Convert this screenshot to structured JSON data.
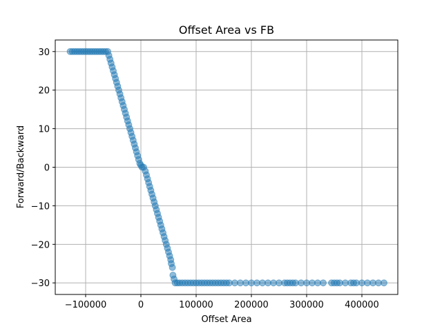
{
  "chart_data": {
    "type": "scatter",
    "title": "Offset Area vs FB",
    "xlabel": "Offset Area",
    "ylabel": "Forward/Backward",
    "xlim": [
      -155000,
      465000
    ],
    "ylim": [
      -33,
      33
    ],
    "xticks": [
      -100000,
      0,
      100000,
      200000,
      300000,
      400000
    ],
    "xtick_labels": [
      "−100000",
      "0",
      "100000",
      "200000",
      "300000",
      "400000"
    ],
    "yticks": [
      -30,
      -20,
      -10,
      0,
      10,
      20,
      30
    ],
    "ytick_labels": [
      "−30",
      "−20",
      "−10",
      "0",
      "10",
      "20",
      "30"
    ],
    "grid": true,
    "marker_color": "#1f77b4",
    "marker_alpha": 0.5,
    "series": [
      {
        "points": [
          [
            -128000,
            30
          ],
          [
            -124000,
            30
          ],
          [
            -120000,
            30
          ],
          [
            -116000,
            30
          ],
          [
            -112000,
            30
          ],
          [
            -108000,
            30
          ],
          [
            -104000,
            30
          ],
          [
            -100000,
            30
          ],
          [
            -96000,
            30
          ],
          [
            -92000,
            30
          ],
          [
            -88000,
            30
          ],
          [
            -84000,
            30
          ],
          [
            -80000,
            30
          ],
          [
            -76000,
            30
          ],
          [
            -72000,
            30
          ],
          [
            -68000,
            30
          ],
          [
            -64000,
            30
          ],
          [
            -60000,
            30
          ],
          [
            -58000,
            29
          ],
          [
            -56000,
            28
          ],
          [
            -54000,
            27
          ],
          [
            -52000,
            26
          ],
          [
            -50000,
            25
          ],
          [
            -48000,
            24
          ],
          [
            -46000,
            23
          ],
          [
            -44000,
            22
          ],
          [
            -42000,
            21
          ],
          [
            -40000,
            20
          ],
          [
            -38000,
            19
          ],
          [
            -36000,
            18
          ],
          [
            -34000,
            17
          ],
          [
            -32000,
            16
          ],
          [
            -30000,
            15
          ],
          [
            -28000,
            14
          ],
          [
            -26000,
            13
          ],
          [
            -24000,
            12
          ],
          [
            -22000,
            11
          ],
          [
            -20000,
            10
          ],
          [
            -18000,
            9
          ],
          [
            -16000,
            8
          ],
          [
            -14000,
            7
          ],
          [
            -12000,
            6
          ],
          [
            -10000,
            5
          ],
          [
            -8000,
            4
          ],
          [
            -6000,
            3
          ],
          [
            -4000,
            2
          ],
          [
            -2000,
            1
          ],
          [
            0,
            0.5
          ],
          [
            2000,
            0
          ],
          [
            5000,
            0
          ],
          [
            8000,
            -1
          ],
          [
            10000,
            -2
          ],
          [
            12000,
            -3
          ],
          [
            14000,
            -4
          ],
          [
            16000,
            -5
          ],
          [
            18000,
            -6
          ],
          [
            20000,
            -7
          ],
          [
            22000,
            -8
          ],
          [
            24000,
            -9
          ],
          [
            26000,
            -10
          ],
          [
            28000,
            -11
          ],
          [
            30000,
            -12
          ],
          [
            32000,
            -13
          ],
          [
            34000,
            -14
          ],
          [
            36000,
            -15
          ],
          [
            38000,
            -16
          ],
          [
            40000,
            -17
          ],
          [
            42000,
            -18
          ],
          [
            44000,
            -19
          ],
          [
            46000,
            -20
          ],
          [
            48000,
            -21
          ],
          [
            50000,
            -22
          ],
          [
            52000,
            -23
          ],
          [
            54000,
            -24
          ],
          [
            55000,
            -25
          ],
          [
            57000,
            -26
          ],
          [
            58000,
            -28
          ],
          [
            60000,
            -29
          ],
          [
            62000,
            -30
          ],
          [
            66000,
            -30
          ],
          [
            70000,
            -30
          ],
          [
            75000,
            -30
          ],
          [
            80000,
            -30
          ],
          [
            85000,
            -30
          ],
          [
            90000,
            -30
          ],
          [
            95000,
            -30
          ],
          [
            100000,
            -30
          ],
          [
            105000,
            -30
          ],
          [
            110000,
            -30
          ],
          [
            115000,
            -30
          ],
          [
            120000,
            -30
          ],
          [
            125000,
            -30
          ],
          [
            130000,
            -30
          ],
          [
            135000,
            -30
          ],
          [
            140000,
            -30
          ],
          [
            145000,
            -30
          ],
          [
            150000,
            -30
          ],
          [
            155000,
            -30
          ],
          [
            160000,
            -30
          ],
          [
            170000,
            -30
          ],
          [
            180000,
            -30
          ],
          [
            190000,
            -30
          ],
          [
            200000,
            -30
          ],
          [
            210000,
            -30
          ],
          [
            220000,
            -30
          ],
          [
            230000,
            -30
          ],
          [
            240000,
            -30
          ],
          [
            250000,
            -30
          ],
          [
            260000,
            -30
          ],
          [
            265000,
            -30
          ],
          [
            270000,
            -30
          ],
          [
            275000,
            -30
          ],
          [
            280000,
            -30
          ],
          [
            290000,
            -30
          ],
          [
            300000,
            -30
          ],
          [
            310000,
            -30
          ],
          [
            320000,
            -30
          ],
          [
            330000,
            -30
          ],
          [
            345000,
            -30
          ],
          [
            350000,
            -30
          ],
          [
            355000,
            -30
          ],
          [
            360000,
            -30
          ],
          [
            370000,
            -30
          ],
          [
            380000,
            -30
          ],
          [
            385000,
            -30
          ],
          [
            390000,
            -30
          ],
          [
            400000,
            -30
          ],
          [
            410000,
            -30
          ],
          [
            420000,
            -30
          ],
          [
            430000,
            -30
          ],
          [
            440000,
            -30
          ]
        ]
      }
    ]
  }
}
